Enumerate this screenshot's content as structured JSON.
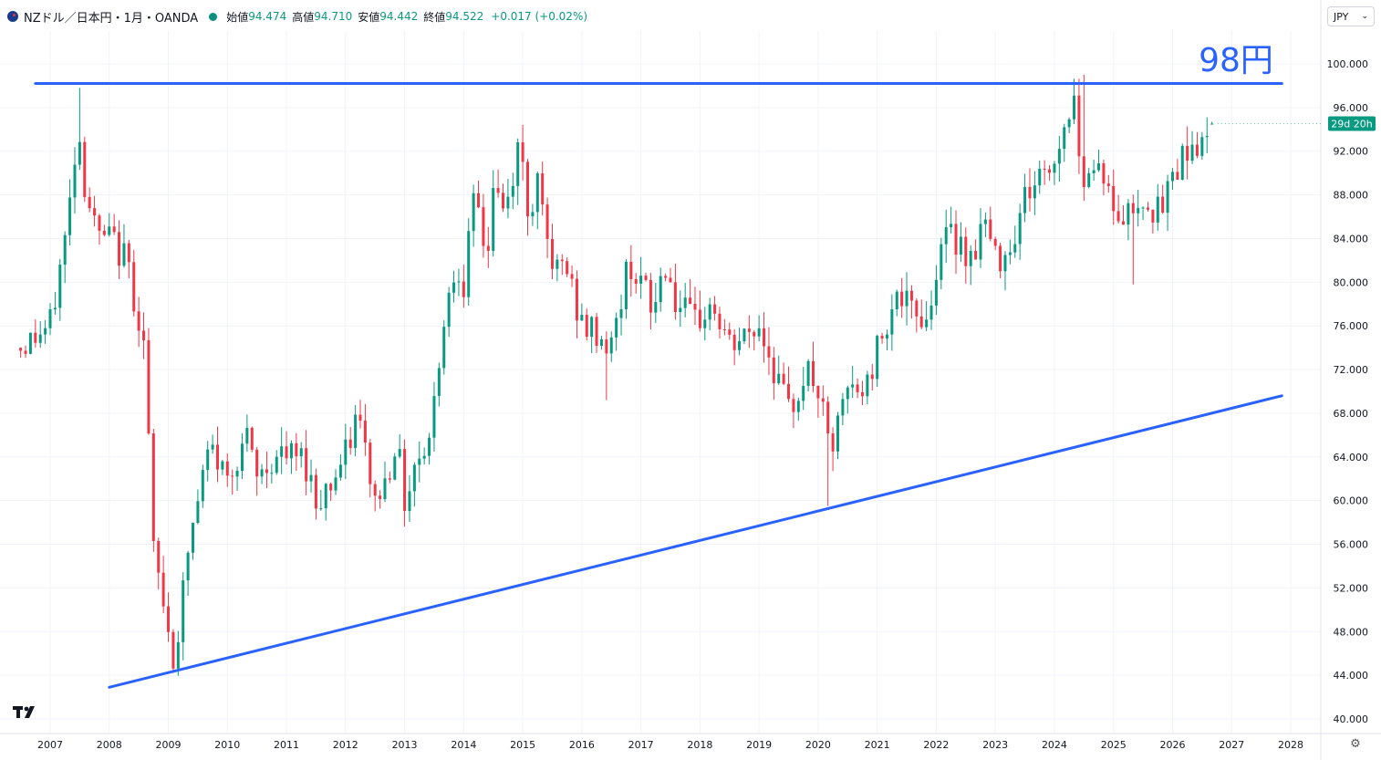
{
  "header": {
    "symbol": "NZドル／日本円・1月・OANDA",
    "open_label": "始値",
    "open": "94.474",
    "high_label": "高値",
    "high": "94.710",
    "low_label": "安値",
    "low": "94.442",
    "close_label": "終値",
    "close": "94.522",
    "change": "+0.017 (+0.02%)"
  },
  "currency_selector": "JPY",
  "countdown": "29d 20h",
  "annotation_text": "98円",
  "icons": {
    "logo": "tradingview-logo-icon",
    "settings": "gear-icon",
    "flag": "nz-flag-icon"
  },
  "colors": {
    "up": "#089981",
    "down": "#f23645",
    "trendline": "#2962ff",
    "annotation": "#2962ff"
  },
  "chart_data": {
    "type": "candlestick",
    "title": "NZドル／日本円・1月・OANDA",
    "xlabel": "",
    "ylabel": "",
    "ylim": [
      40.0,
      101.0
    ],
    "xlim": [
      2006.5,
      2028.15
    ],
    "x_ticks": [
      "2007",
      "2008",
      "2009",
      "2010",
      "2011",
      "2012",
      "2013",
      "2014",
      "2015",
      "2016",
      "2017",
      "2018",
      "2019",
      "2020",
      "2021",
      "2022",
      "2023",
      "2024",
      "2025",
      "2026",
      "2027",
      "2028"
    ],
    "y_ticks": [
      "40.000",
      "44.000",
      "48.000",
      "52.000",
      "56.000",
      "60.000",
      "64.000",
      "68.000",
      "72.000",
      "76.000",
      "80.000",
      "84.000",
      "88.000",
      "92.000",
      "96.000",
      "100.000"
    ],
    "grid": true,
    "anchors": [
      {
        "t": 2006.5,
        "c": 74
      },
      {
        "t": 2007.0,
        "c": 76
      },
      {
        "t": 2007.25,
        "c": 84
      },
      {
        "t": 2007.4,
        "c": 90
      },
      {
        "t": 2007.45,
        "c": 96
      },
      {
        "t": 2007.55,
        "c": 90
      },
      {
        "t": 2007.8,
        "c": 84
      },
      {
        "t": 2008.0,
        "c": 84
      },
      {
        "t": 2008.3,
        "c": 82
      },
      {
        "t": 2008.6,
        "c": 74
      },
      {
        "t": 2008.75,
        "c": 55
      },
      {
        "t": 2008.95,
        "c": 50
      },
      {
        "t": 2009.1,
        "c": 45
      },
      {
        "t": 2009.35,
        "c": 56
      },
      {
        "t": 2009.7,
        "c": 65
      },
      {
        "t": 2010.0,
        "c": 62
      },
      {
        "t": 2010.3,
        "c": 66
      },
      {
        "t": 2010.5,
        "c": 62
      },
      {
        "t": 2010.8,
        "c": 64
      },
      {
        "t": 2011.0,
        "c": 64
      },
      {
        "t": 2011.3,
        "c": 64
      },
      {
        "t": 2011.5,
        "c": 60
      },
      {
        "t": 2011.8,
        "c": 62
      },
      {
        "t": 2012.0,
        "c": 64
      },
      {
        "t": 2012.2,
        "c": 68
      },
      {
        "t": 2012.5,
        "c": 60
      },
      {
        "t": 2012.7,
        "c": 62
      },
      {
        "t": 2012.85,
        "c": 66
      },
      {
        "t": 2013.0,
        "c": 60
      },
      {
        "t": 2013.2,
        "c": 64
      },
      {
        "t": 2013.45,
        "c": 66
      },
      {
        "t": 2013.55,
        "c": 72
      },
      {
        "t": 2013.7,
        "c": 78
      },
      {
        "t": 2013.9,
        "c": 82
      },
      {
        "t": 2014.0,
        "c": 80
      },
      {
        "t": 2014.2,
        "c": 88
      },
      {
        "t": 2014.4,
        "c": 82
      },
      {
        "t": 2014.5,
        "c": 89
      },
      {
        "t": 2014.7,
        "c": 86
      },
      {
        "t": 2014.95,
        "c": 93
      },
      {
        "t": 2015.1,
        "c": 86
      },
      {
        "t": 2015.3,
        "c": 91
      },
      {
        "t": 2015.45,
        "c": 80
      },
      {
        "t": 2015.7,
        "c": 82
      },
      {
        "t": 2016.0,
        "c": 76
      },
      {
        "t": 2016.3,
        "c": 75
      },
      {
        "t": 2016.5,
        "c": 74
      },
      {
        "t": 2016.8,
        "c": 82
      },
      {
        "t": 2017.0,
        "c": 80
      },
      {
        "t": 2017.2,
        "c": 77
      },
      {
        "t": 2017.4,
        "c": 82
      },
      {
        "t": 2017.6,
        "c": 78
      },
      {
        "t": 2017.9,
        "c": 76
      },
      {
        "t": 2018.2,
        "c": 78
      },
      {
        "t": 2018.5,
        "c": 74
      },
      {
        "t": 2018.8,
        "c": 75
      },
      {
        "t": 2019.0,
        "c": 76
      },
      {
        "t": 2019.2,
        "c": 73
      },
      {
        "t": 2019.5,
        "c": 68
      },
      {
        "t": 2019.8,
        "c": 72
      },
      {
        "t": 2020.0,
        "c": 70
      },
      {
        "t": 2020.2,
        "c": 64
      },
      {
        "t": 2020.5,
        "c": 70
      },
      {
        "t": 2020.8,
        "c": 70
      },
      {
        "t": 2021.0,
        "c": 74
      },
      {
        "t": 2021.3,
        "c": 79
      },
      {
        "t": 2021.6,
        "c": 77
      },
      {
        "t": 2021.9,
        "c": 77
      },
      {
        "t": 2022.05,
        "c": 84
      },
      {
        "t": 2022.4,
        "c": 84
      },
      {
        "t": 2022.6,
        "c": 82
      },
      {
        "t": 2022.8,
        "c": 86
      },
      {
        "t": 2023.0,
        "c": 82
      },
      {
        "t": 2023.3,
        "c": 84
      },
      {
        "t": 2023.5,
        "c": 88
      },
      {
        "t": 2023.8,
        "c": 90
      },
      {
        "t": 2024.0,
        "c": 91
      },
      {
        "t": 2024.3,
        "c": 97
      },
      {
        "t": 2024.5,
        "c": 90
      },
      {
        "t": 2024.8,
        "c": 91
      },
      {
        "t": 2025.0,
        "c": 86
      },
      {
        "t": 2025.2,
        "c": 86
      },
      {
        "t": 2025.5,
        "c": 88
      },
      {
        "t": 2025.8,
        "c": 86
      },
      {
        "t": 2026.0,
        "c": 90
      },
      {
        "t": 2026.3,
        "c": 93
      },
      {
        "t": 2026.55,
        "c": 92
      },
      {
        "t": 2026.7,
        "c": 94.52
      }
    ],
    "last_close": 94.522,
    "trendlines": [
      {
        "name": "resistance",
        "from": {
          "t": 2006.75,
          "p": 98.2
        },
        "to": {
          "t": 2027.85,
          "p": 98.2
        }
      },
      {
        "name": "support",
        "from": {
          "t": 2008.0,
          "p": 42.9
        },
        "to": {
          "t": 2027.85,
          "p": 69.6
        }
      }
    ]
  }
}
